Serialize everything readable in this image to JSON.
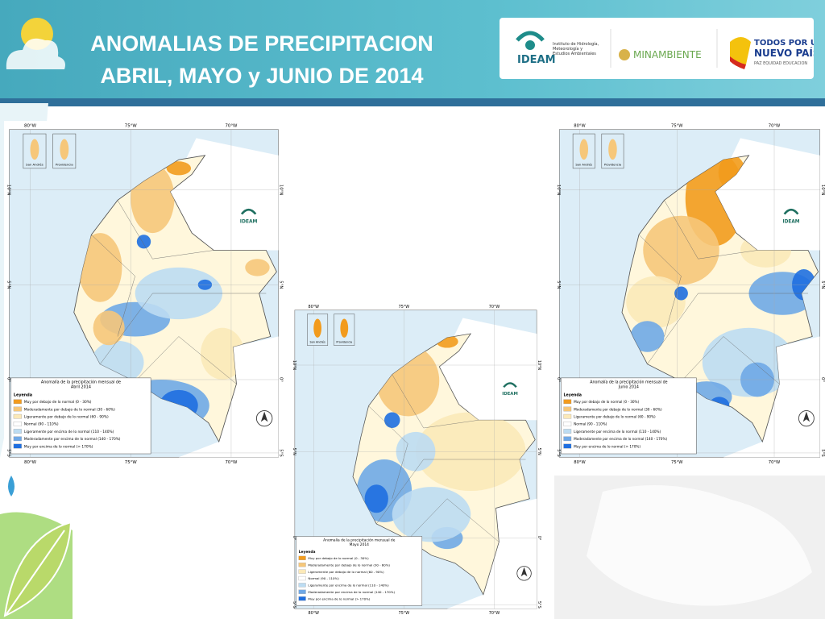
{
  "header": {
    "title": [
      "ANOMALIAS DE PRECIPITACION",
      "ABRIL, MAYO y JUNIO DE 2014"
    ]
  },
  "logos": {
    "ideam": "IDEAM",
    "ideam_name": [
      "Instituto de Hidrología,",
      "Meteorología y",
      "Estudios Ambientales"
    ],
    "ministry": "MINAMBIENTE",
    "government": [
      "TODOS POR UN",
      "NUEVO PAÍS",
      "PAZ  EQUIDAD  EDUCACION"
    ]
  },
  "maps": [
    {
      "title": [
        "Anomalía de la precipitación mensual de",
        "Abril 2014"
      ]
    },
    {
      "title": [
        "Anomalía de la precipitación mensual de",
        "Mayo 2014"
      ]
    },
    {
      "title": [
        "Anomalía de la precipitación mensual de",
        "Junio 2014"
      ]
    }
  ],
  "legend": {
    "title": "Leyenda",
    "items": [
      {
        "label": "Muy por debajo de lo normal (0 - 30%)",
        "color": "#f29b1d"
      },
      {
        "label": "Moderadamente por debajo de lo normal (30 - 60%)",
        "color": "#f6c77a"
      },
      {
        "label": "Ligeramente por debajo de lo normal (60 - 90%)",
        "color": "#fbe9b8"
      },
      {
        "label": "Normal (90 - 110%)",
        "color": "#ffffff"
      },
      {
        "label": "Ligeramente por encima de lo normal (110 - 140%)",
        "color": "#bcdcf2"
      },
      {
        "label": "Moderadamente por encima de lo normal (140 - 170%)",
        "color": "#6fa8e6"
      },
      {
        "label": "Muy por encima de lo normal (> 170%)",
        "color": "#1f6fe0"
      }
    ]
  },
  "coordinates": {
    "longitude": [
      "80°W",
      "75°W",
      "70°W"
    ],
    "latitude": [
      "10°N",
      "5°N",
      "0°",
      "5°S"
    ]
  },
  "insets": [
    "San Andrés",
    "Providencia"
  ],
  "map_logo": "IDEAM"
}
